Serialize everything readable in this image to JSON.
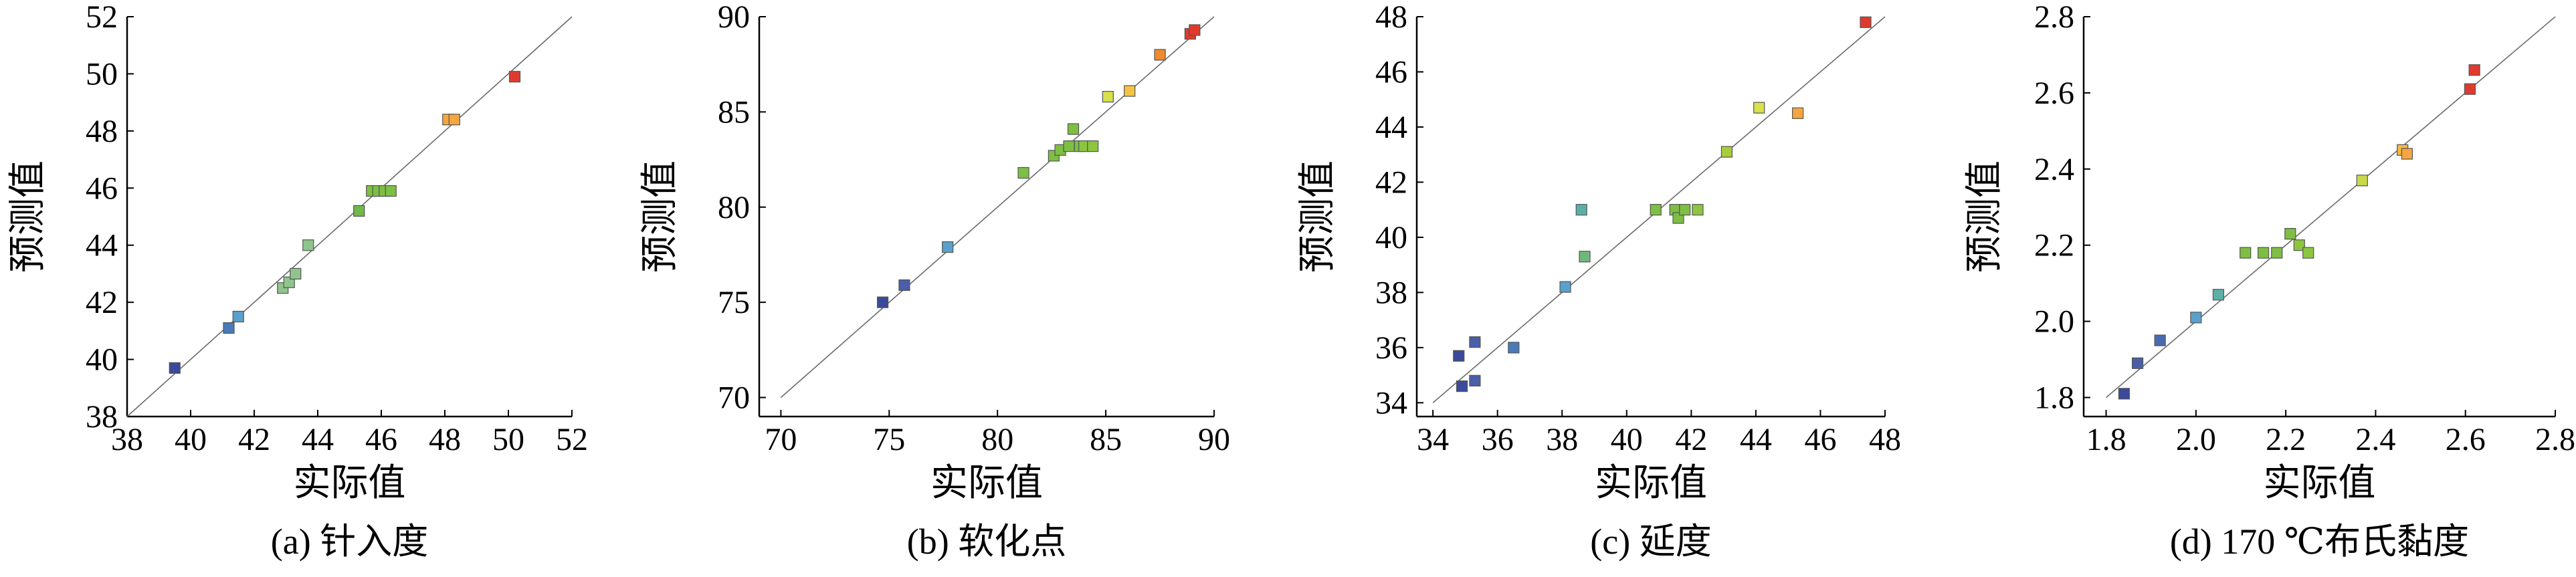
{
  "chart_data": [
    {
      "type": "scatter",
      "caption": "(a) 针入度",
      "xlabel": "实际值",
      "ylabel": "预测值",
      "xlim": [
        38,
        52
      ],
      "ylim": [
        38,
        52
      ],
      "xticks": [
        "38",
        "40",
        "42",
        "44",
        "46",
        "48",
        "50",
        "52"
      ],
      "yticks": [
        "38",
        "40",
        "42",
        "44",
        "46",
        "48",
        "50",
        "52"
      ],
      "reference_line": [
        [
          38,
          38
        ],
        [
          52,
          52
        ]
      ],
      "grid": false,
      "points": [
        {
          "x": 39.5,
          "y": 39.7,
          "color": "#3b4a9a"
        },
        {
          "x": 41.2,
          "y": 41.1,
          "color": "#4a7ab8"
        },
        {
          "x": 41.5,
          "y": 41.5,
          "color": "#5aa0cc"
        },
        {
          "x": 42.9,
          "y": 42.5,
          "color": "#8fc58c"
        },
        {
          "x": 43.1,
          "y": 42.7,
          "color": "#8fc58c"
        },
        {
          "x": 43.3,
          "y": 43.0,
          "color": "#8fc58c"
        },
        {
          "x": 43.7,
          "y": 44.0,
          "color": "#8fc58c"
        },
        {
          "x": 45.3,
          "y": 45.2,
          "color": "#6fb84a"
        },
        {
          "x": 45.7,
          "y": 45.9,
          "color": "#7dbf43"
        },
        {
          "x": 45.9,
          "y": 45.9,
          "color": "#7dbf43"
        },
        {
          "x": 46.1,
          "y": 45.9,
          "color": "#7dbf43"
        },
        {
          "x": 46.3,
          "y": 45.9,
          "color": "#7dbf43"
        },
        {
          "x": 48.1,
          "y": 48.4,
          "color": "#f5a640"
        },
        {
          "x": 48.3,
          "y": 48.4,
          "color": "#f5a640"
        },
        {
          "x": 50.2,
          "y": 49.9,
          "color": "#e03a2e"
        }
      ]
    },
    {
      "type": "scatter",
      "caption": "(b) 软化点",
      "xlabel": "实际值",
      "ylabel": "预测值",
      "xlim": [
        69,
        90
      ],
      "ylim": [
        69,
        90
      ],
      "xticks": [
        "70",
        "75",
        "80",
        "85",
        "90"
      ],
      "yticks": [
        "70",
        "75",
        "80",
        "85",
        "90"
      ],
      "reference_line": [
        [
          70,
          70
        ],
        [
          90,
          90
        ]
      ],
      "grid": false,
      "points": [
        {
          "x": 74.7,
          "y": 75.0,
          "color": "#3b4a9a"
        },
        {
          "x": 75.7,
          "y": 75.9,
          "color": "#4a5fa8"
        },
        {
          "x": 77.7,
          "y": 77.9,
          "color": "#5aa0cc"
        },
        {
          "x": 81.2,
          "y": 81.8,
          "color": "#7dbf43"
        },
        {
          "x": 82.6,
          "y": 82.7,
          "color": "#7dbf43"
        },
        {
          "x": 82.9,
          "y": 83.0,
          "color": "#7dbf43"
        },
        {
          "x": 83.3,
          "y": 83.2,
          "color": "#7dbf43"
        },
        {
          "x": 83.5,
          "y": 84.1,
          "color": "#7dbf43"
        },
        {
          "x": 83.8,
          "y": 83.2,
          "color": "#7dbf43"
        },
        {
          "x": 84.0,
          "y": 83.2,
          "color": "#8cc63f"
        },
        {
          "x": 84.4,
          "y": 83.2,
          "color": "#8cc63f"
        },
        {
          "x": 85.1,
          "y": 85.8,
          "color": "#d8e04a"
        },
        {
          "x": 86.1,
          "y": 86.1,
          "color": "#f5c342"
        },
        {
          "x": 87.5,
          "y": 88.0,
          "color": "#f08a2e"
        },
        {
          "x": 88.9,
          "y": 89.1,
          "color": "#e03a2e"
        },
        {
          "x": 89.1,
          "y": 89.3,
          "color": "#e03a2e"
        }
      ]
    },
    {
      "type": "scatter",
      "caption": "(c) 延度",
      "xlabel": "实际值",
      "ylabel": "预测值",
      "xlim": [
        33.5,
        48
      ],
      "ylim": [
        33.5,
        48
      ],
      "xticks": [
        "34",
        "36",
        "38",
        "40",
        "42",
        "44",
        "46",
        "48"
      ],
      "yticks": [
        "34",
        "36",
        "38",
        "40",
        "42",
        "44",
        "46",
        "48"
      ],
      "reference_line": [
        [
          34,
          34
        ],
        [
          48,
          48
        ]
      ],
      "grid": false,
      "points": [
        {
          "x": 34.8,
          "y": 35.7,
          "color": "#3b4a9a"
        },
        {
          "x": 34.9,
          "y": 34.6,
          "color": "#3b4a9a"
        },
        {
          "x": 35.3,
          "y": 36.2,
          "color": "#4a5fa8"
        },
        {
          "x": 35.3,
          "y": 34.8,
          "color": "#4a5fa8"
        },
        {
          "x": 36.5,
          "y": 36.0,
          "color": "#4a7ab8"
        },
        {
          "x": 38.1,
          "y": 38.2,
          "color": "#5aa0cc"
        },
        {
          "x": 38.6,
          "y": 41.0,
          "color": "#5ab0a8"
        },
        {
          "x": 38.7,
          "y": 39.3,
          "color": "#6fb87a"
        },
        {
          "x": 40.9,
          "y": 41.0,
          "color": "#7dbf43"
        },
        {
          "x": 41.5,
          "y": 41.0,
          "color": "#7dbf43"
        },
        {
          "x": 41.6,
          "y": 40.7,
          "color": "#7dbf43"
        },
        {
          "x": 41.8,
          "y": 41.0,
          "color": "#7dbf43"
        },
        {
          "x": 42.2,
          "y": 41.0,
          "color": "#8cc63f"
        },
        {
          "x": 43.1,
          "y": 43.1,
          "color": "#a8cc3a"
        },
        {
          "x": 44.1,
          "y": 44.7,
          "color": "#d8e04a"
        },
        {
          "x": 45.3,
          "y": 44.5,
          "color": "#f5a640"
        },
        {
          "x": 47.4,
          "y": 47.8,
          "color": "#e03a2e"
        }
      ]
    },
    {
      "type": "scatter",
      "caption": "(d) 170 ℃布氏黏度",
      "xlabel": "实际值",
      "ylabel": "预测值",
      "xlim": [
        1.75,
        2.8
      ],
      "ylim": [
        1.75,
        2.8
      ],
      "xticks": [
        "1.8",
        "2.0",
        "2.2",
        "2.4",
        "2.6",
        "2.8"
      ],
      "yticks": [
        "1.8",
        "2.0",
        "2.2",
        "2.4",
        "2.6",
        "2.8"
      ],
      "reference_line": [
        [
          1.8,
          1.8
        ],
        [
          2.8,
          2.8
        ]
      ],
      "grid": false,
      "points": [
        {
          "x": 1.84,
          "y": 1.81,
          "color": "#3b4a9a"
        },
        {
          "x": 1.87,
          "y": 1.89,
          "color": "#4a5fa8"
        },
        {
          "x": 1.92,
          "y": 1.95,
          "color": "#4a6ab0"
        },
        {
          "x": 2.0,
          "y": 2.01,
          "color": "#5aa0cc"
        },
        {
          "x": 2.05,
          "y": 2.07,
          "color": "#5ab0a8"
        },
        {
          "x": 2.11,
          "y": 2.18,
          "color": "#7dbf43"
        },
        {
          "x": 2.15,
          "y": 2.18,
          "color": "#7dbf43"
        },
        {
          "x": 2.18,
          "y": 2.18,
          "color": "#7dbf43"
        },
        {
          "x": 2.21,
          "y": 2.23,
          "color": "#7dbf43"
        },
        {
          "x": 2.23,
          "y": 2.2,
          "color": "#8cc63f"
        },
        {
          "x": 2.25,
          "y": 2.18,
          "color": "#8cc63f"
        },
        {
          "x": 2.37,
          "y": 2.37,
          "color": "#c8d84a"
        },
        {
          "x": 2.46,
          "y": 2.45,
          "color": "#f5b842"
        },
        {
          "x": 2.47,
          "y": 2.44,
          "color": "#f5a640"
        },
        {
          "x": 2.61,
          "y": 2.61,
          "color": "#e03a2e"
        },
        {
          "x": 2.62,
          "y": 2.66,
          "color": "#e03a2e"
        }
      ]
    }
  ]
}
